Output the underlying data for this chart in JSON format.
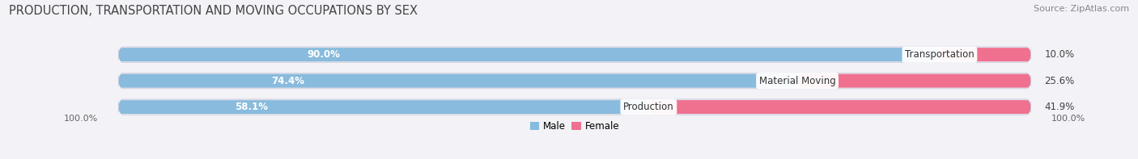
{
  "title": "PRODUCTION, TRANSPORTATION AND MOVING OCCUPATIONS BY SEX",
  "source": "Source: ZipAtlas.com",
  "categories": [
    "Transportation",
    "Material Moving",
    "Production"
  ],
  "male_values": [
    90.0,
    74.4,
    58.1
  ],
  "female_values": [
    10.0,
    25.6,
    41.9
  ],
  "male_color": "#88bbdd",
  "female_color": "#f07090",
  "bg_color": "#f2f2f7",
  "bar_bg_color": "#e2e2ea",
  "male_label_color": "#ffffff",
  "female_label_color": "#555555",
  "axis_label_left": "100.0%",
  "axis_label_right": "100.0%",
  "title_fontsize": 10.5,
  "source_fontsize": 8,
  "bar_label_fontsize": 8.5,
  "category_fontsize": 8.5,
  "axis_fontsize": 8,
  "legend_fontsize": 8.5
}
